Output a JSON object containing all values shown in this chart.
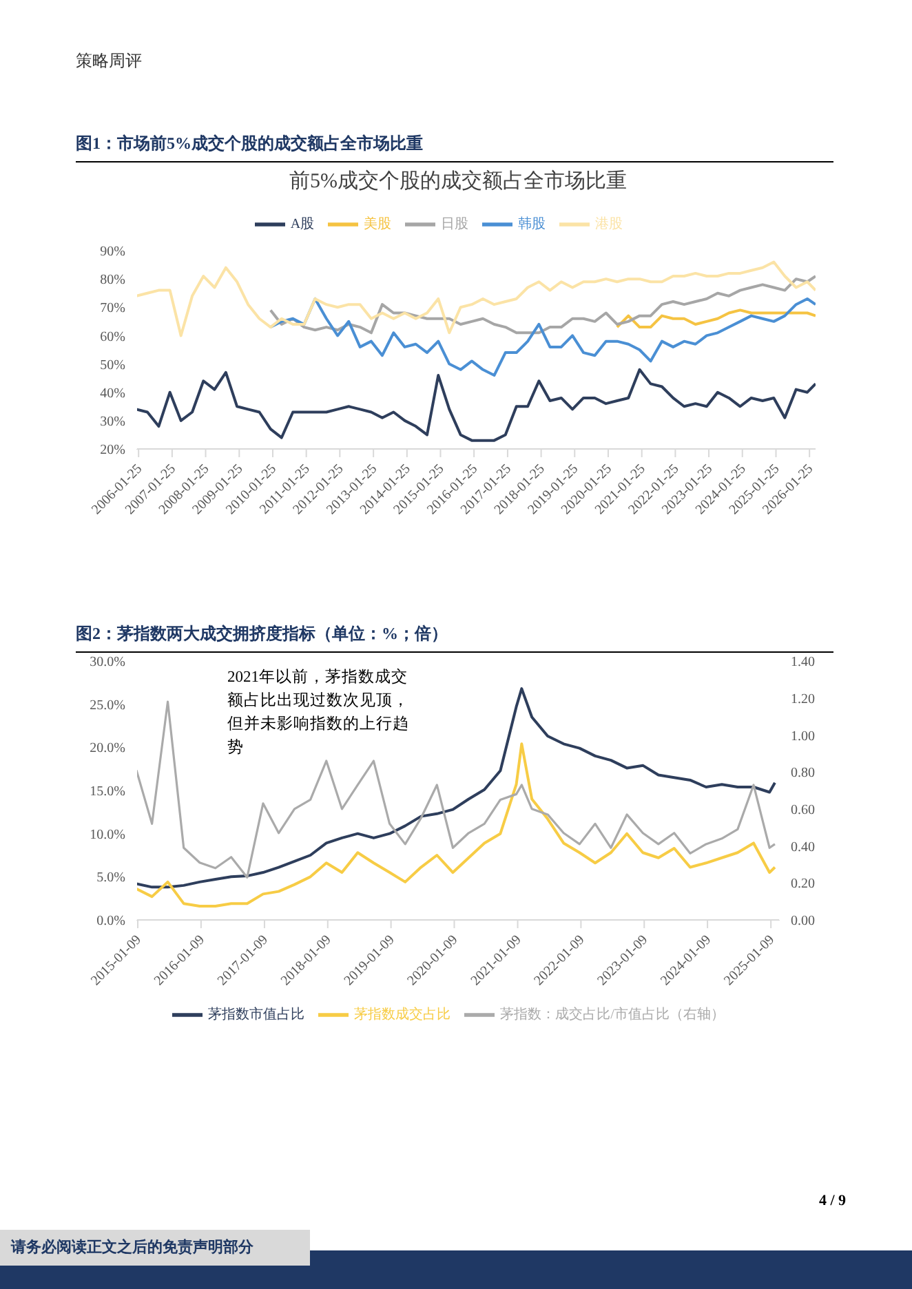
{
  "chart_data": [
    {
      "type": "line",
      "title": "前5%成交个股的成交额占全市场比重",
      "annotations": [
        "策略周评",
        "图1：市场前5%成交个股的成交额占全市场比重"
      ],
      "x": [
        "2006-01",
        "2006-05",
        "2006-09",
        "2007-01",
        "2007-05",
        "2007-09",
        "2008-01",
        "2008-05",
        "2008-09",
        "2009-01",
        "2009-05",
        "2009-09",
        "2010-01",
        "2010-05",
        "2010-09",
        "2011-01",
        "2011-05",
        "2011-09",
        "2012-01",
        "2012-05",
        "2012-09",
        "2013-01",
        "2013-05",
        "2013-09",
        "2014-01",
        "2014-05",
        "2014-09",
        "2015-01",
        "2015-05",
        "2015-09",
        "2016-01",
        "2016-05",
        "2016-09",
        "2017-01",
        "2017-05",
        "2017-09",
        "2018-01",
        "2018-05",
        "2018-09",
        "2019-01",
        "2019-05",
        "2019-09",
        "2020-01",
        "2020-05",
        "2020-09",
        "2021-01",
        "2021-05",
        "2021-09",
        "2022-01",
        "2022-05",
        "2022-09",
        "2023-01",
        "2023-05",
        "2023-09",
        "2024-01",
        "2024-05",
        "2024-09",
        "2025-01",
        "2025-05",
        "2025-09",
        "2026-01",
        "2026-04"
      ],
      "series": [
        {
          "name": "A股",
          "color": "#2e3e5c",
          "values": [
            34,
            33,
            28,
            40,
            30,
            33,
            44,
            41,
            47,
            35,
            34,
            33,
            27,
            24,
            33,
            33,
            33,
            33,
            34,
            35,
            34,
            33,
            31,
            33,
            30,
            28,
            25,
            46,
            34,
            25,
            23,
            23,
            23,
            25,
            35,
            35,
            44,
            37,
            38,
            34,
            38,
            38,
            36,
            37,
            38,
            48,
            43,
            42,
            38,
            35,
            36,
            35,
            40,
            38,
            35,
            38,
            37,
            38,
            31,
            41,
            40,
            43
          ]
        },
        {
          "name": "美股",
          "color": "#f5c342",
          "values": [
            null,
            null,
            null,
            null,
            null,
            null,
            null,
            null,
            null,
            null,
            null,
            null,
            null,
            null,
            null,
            null,
            null,
            null,
            null,
            null,
            null,
            null,
            null,
            null,
            null,
            null,
            null,
            null,
            null,
            null,
            null,
            null,
            null,
            null,
            null,
            null,
            null,
            null,
            null,
            null,
            null,
            null,
            null,
            63,
            67,
            63,
            63,
            67,
            66,
            66,
            64,
            65,
            66,
            68,
            69,
            68,
            68,
            68,
            68,
            68,
            68,
            67
          ]
        },
        {
          "name": "日股",
          "color": "#a6a6a6",
          "values": [
            null,
            null,
            null,
            null,
            null,
            null,
            null,
            null,
            null,
            null,
            null,
            null,
            69,
            64,
            66,
            63,
            62,
            63,
            62,
            64,
            63,
            61,
            71,
            68,
            68,
            67,
            66,
            66,
            66,
            64,
            65,
            66,
            64,
            63,
            61,
            61,
            61,
            63,
            63,
            66,
            66,
            65,
            68,
            64,
            65,
            67,
            67,
            71,
            72,
            71,
            72,
            73,
            75,
            74,
            76,
            77,
            78,
            77,
            76,
            80,
            79,
            81
          ]
        },
        {
          "name": "韩股",
          "color": "#4a8fd4",
          "values": [
            null,
            null,
            null,
            null,
            null,
            null,
            null,
            null,
            null,
            null,
            null,
            null,
            63,
            65,
            66,
            64,
            73,
            66,
            60,
            65,
            56,
            58,
            53,
            61,
            56,
            57,
            54,
            58,
            50,
            48,
            51,
            48,
            46,
            54,
            54,
            58,
            64,
            56,
            56,
            60,
            54,
            53,
            58,
            58,
            57,
            55,
            51,
            58,
            56,
            58,
            57,
            60,
            61,
            63,
            65,
            67,
            66,
            65,
            67,
            71,
            73,
            71
          ]
        },
        {
          "name": "港股",
          "color": "#fbe3a6",
          "values": [
            74,
            75,
            76,
            76,
            60,
            74,
            81,
            77,
            84,
            79,
            71,
            66,
            63,
            66,
            64,
            64,
            73,
            71,
            70,
            71,
            71,
            66,
            68,
            66,
            68,
            66,
            68,
            73,
            61,
            70,
            71,
            73,
            71,
            72,
            73,
            77,
            79,
            76,
            79,
            77,
            79,
            79,
            80,
            79,
            80,
            80,
            79,
            79,
            81,
            81,
            82,
            81,
            81,
            82,
            82,
            83,
            84,
            86,
            81,
            77,
            79,
            76
          ]
        }
      ],
      "xlim": [
        "2006-01",
        "2026-04"
      ],
      "xticks": [
        "2006-01-25",
        "2007-01-25",
        "2008-01-25",
        "2009-01-25",
        "2010-01-25",
        "2011-01-25",
        "2012-01-25",
        "2013-01-25",
        "2014-01-25",
        "2015-01-25",
        "2016-01-25",
        "2017-01-25",
        "2018-01-25",
        "2019-01-25",
        "2020-01-25",
        "2021-01-25",
        "2022-01-25",
        "2023-01-25",
        "2024-01-25",
        "2025-01-25",
        "2026-01-25"
      ],
      "ylim": [
        20,
        90
      ],
      "yticks": [
        {
          "value": 20,
          "label": "20%"
        },
        {
          "value": 30,
          "label": "30%"
        },
        {
          "value": 40,
          "label": "40%"
        },
        {
          "value": 50,
          "label": "50%"
        },
        {
          "value": 60,
          "label": "60%"
        },
        {
          "value": 70,
          "label": "70%"
        },
        {
          "value": 80,
          "label": "80%"
        },
        {
          "value": 90,
          "label": "90%"
        }
      ],
      "legend": "top",
      "marker": "none",
      "line_style": "solid"
    },
    {
      "type": "line",
      "annotations": [
        "图2：茅指数两大成交拥挤度指标（单位：%；倍）",
        "2021年以前，茅指数成交额占比出现过数次见顶，但并未影响指数的上行趋势",
        "4 / 9",
        "请务必阅读正文之后的免责声明部分"
      ],
      "x": [
        "2015-01",
        "2015-04",
        "2015-07",
        "2015-10",
        "2016-01",
        "2016-04",
        "2016-07",
        "2016-10",
        "2017-01",
        "2017-04",
        "2017-07",
        "2017-10",
        "2018-01",
        "2018-04",
        "2018-07",
        "2018-10",
        "2019-01",
        "2019-04",
        "2019-07",
        "2019-10",
        "2020-01",
        "2020-04",
        "2020-07",
        "2020-10",
        "2021-01",
        "2021-02",
        "2021-04",
        "2021-07",
        "2021-10",
        "2022-01",
        "2022-04",
        "2022-07",
        "2022-10",
        "2023-01",
        "2023-04",
        "2023-07",
        "2023-10",
        "2024-01",
        "2024-04",
        "2024-07",
        "2024-10",
        "2025-01",
        "2025-02"
      ],
      "series": [
        {
          "name": "茅指数市值占比",
          "color": "#2e3e5c",
          "values": [
            4.2,
            3.8,
            3.8,
            4.0,
            4.4,
            4.7,
            5.0,
            5.1,
            5.5,
            6.1,
            6.8,
            7.5,
            8.9,
            9.5,
            10.0,
            9.5,
            10.0,
            10.9,
            12.0,
            12.3,
            12.8,
            14.0,
            15.1,
            17.3,
            24.7,
            26.8,
            23.5,
            21.3,
            20.4,
            19.9,
            19.0,
            18.5,
            17.6,
            17.9,
            16.8,
            16.5,
            16.2,
            15.4,
            15.7,
            15.4,
            15.4,
            14.8,
            15.9
          ]
        },
        {
          "name": "茅指数成交占比",
          "color": "#f7cc45",
          "values": [
            3.6,
            2.7,
            4.4,
            1.9,
            1.6,
            1.6,
            1.9,
            1.9,
            3.0,
            3.3,
            4.1,
            5.0,
            6.6,
            5.5,
            7.8,
            6.6,
            5.5,
            4.4,
            6.1,
            7.5,
            5.5,
            7.2,
            8.9,
            10.0,
            15.7,
            20.4,
            14.0,
            11.7,
            8.9,
            7.8,
            6.6,
            7.8,
            10.0,
            7.8,
            7.2,
            8.3,
            6.1,
            6.6,
            7.2,
            7.8,
            8.9,
            5.5,
            6.1
          ]
        },
        {
          "name": "茅指数：成交占比/市值占比（右轴）",
          "color": "#aaaaaa",
          "axis": "y2",
          "values": [
            0.81,
            0.52,
            1.18,
            0.39,
            0.31,
            0.28,
            0.34,
            0.23,
            0.63,
            0.47,
            0.6,
            0.65,
            0.86,
            0.6,
            0.73,
            0.86,
            0.52,
            0.41,
            0.55,
            0.73,
            0.39,
            0.47,
            0.52,
            0.65,
            0.68,
            0.73,
            0.6,
            0.57,
            0.47,
            0.41,
            0.52,
            0.39,
            0.57,
            0.47,
            0.41,
            0.47,
            0.36,
            0.41,
            0.44,
            0.49,
            0.73,
            0.39,
            0.41
          ]
        }
      ],
      "xlim": [
        "2015-01",
        "2025-03"
      ],
      "xticks": [
        "2015-01-09",
        "2016-01-09",
        "2017-01-09",
        "2018-01-09",
        "2019-01-09",
        "2020-01-09",
        "2021-01-09",
        "2022-01-09",
        "2023-01-09",
        "2024-01-09",
        "2025-01-09"
      ],
      "ylim": [
        0,
        30
      ],
      "yticks": [
        {
          "value": 0,
          "label": "0.0%"
        },
        {
          "value": 5,
          "label": "5.0%"
        },
        {
          "value": 10,
          "label": "10.0%"
        },
        {
          "value": 15,
          "label": "15.0%"
        },
        {
          "value": 20,
          "label": "20.0%"
        },
        {
          "value": 25,
          "label": "25.0%"
        },
        {
          "value": 30,
          "label": "30.0%"
        }
      ],
      "y2lim": [
        0,
        1.4
      ],
      "y2ticks": [
        {
          "value": 0,
          "label": "0.00"
        },
        {
          "value": 0.2,
          "label": "0.20"
        },
        {
          "value": 0.4,
          "label": "0.40"
        },
        {
          "value": 0.6,
          "label": "0.60"
        },
        {
          "value": 0.8,
          "label": "0.80"
        },
        {
          "value": 1.0,
          "label": "1.00"
        },
        {
          "value": 1.2,
          "label": "1.20"
        },
        {
          "value": 1.4,
          "label": "1.40"
        }
      ],
      "legend": "bottom",
      "marker": "none",
      "line_style": "solid"
    }
  ]
}
